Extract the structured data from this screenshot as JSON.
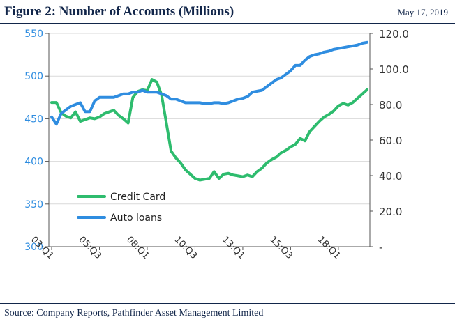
{
  "header": {
    "title": "Figure 2: Number of Accounts (Millions)",
    "date": "May 17, 2019"
  },
  "footer": {
    "source": "Source: Company Reports, Pathfinder Asset Management Limited"
  },
  "colors": {
    "credit": "#2ebc6e",
    "auto": "#2f8de0",
    "grid": "#d9d9d9",
    "axis": "#555555",
    "rightAxisText": "#333333"
  },
  "chart_data": {
    "type": "line",
    "title": "",
    "xlabel": "",
    "ylabel": "",
    "x_ticks": [
      "03:Q1",
      "05:Q3",
      "08:Q1",
      "10:Q3",
      "13:Q1",
      "15:Q3",
      "18:Q1"
    ],
    "x_tick_index": [
      0,
      10,
      20,
      30,
      40,
      50,
      60
    ],
    "yleft": {
      "ylim": [
        300,
        550
      ],
      "ticks": [
        "300",
        "350",
        "400",
        "450",
        "500",
        "550"
      ]
    },
    "yright": {
      "ylim": [
        0,
        120
      ],
      "ticks": [
        "-",
        "20.0",
        "40.0",
        "60.0",
        "80.0",
        "100.0",
        "120.0"
      ]
    },
    "grid": "horizontal",
    "legend": "lower-left",
    "series": [
      {
        "name": "Credit Card",
        "axis": "left",
        "values": [
          469,
          469,
          457,
          453,
          451,
          458,
          447,
          449,
          451,
          450,
          452,
          456,
          458,
          460,
          454,
          450,
          445,
          475,
          482,
          484,
          483,
          496,
          493,
          478,
          445,
          412,
          404,
          398,
          390,
          385,
          380,
          378,
          379,
          380,
          388,
          380,
          385,
          386,
          384,
          383,
          382,
          384,
          382,
          388,
          392,
          398,
          402,
          405,
          410,
          413,
          417,
          420,
          427,
          424,
          435,
          441,
          447,
          452,
          455,
          459,
          465,
          468,
          466,
          469,
          474,
          479,
          484
        ]
      },
      {
        "name": "Auto loans",
        "axis": "right",
        "values": [
          73,
          69,
          75,
          77,
          79,
          80,
          81,
          76,
          76,
          82,
          84,
          84,
          84,
          84,
          85,
          86,
          86,
          87,
          87,
          88,
          87,
          87,
          87,
          86,
          85,
          83,
          83,
          82,
          81,
          81,
          81,
          81,
          80.5,
          80.5,
          81,
          81,
          80.5,
          81,
          82,
          83,
          83.5,
          84.5,
          87,
          87.5,
          88,
          90,
          92,
          94,
          95,
          97,
          99,
          102,
          102,
          105,
          107,
          108,
          108.5,
          109.5,
          110,
          111,
          111.5,
          112,
          112.5,
          113,
          113.5,
          114.5,
          115
        ]
      }
    ]
  }
}
